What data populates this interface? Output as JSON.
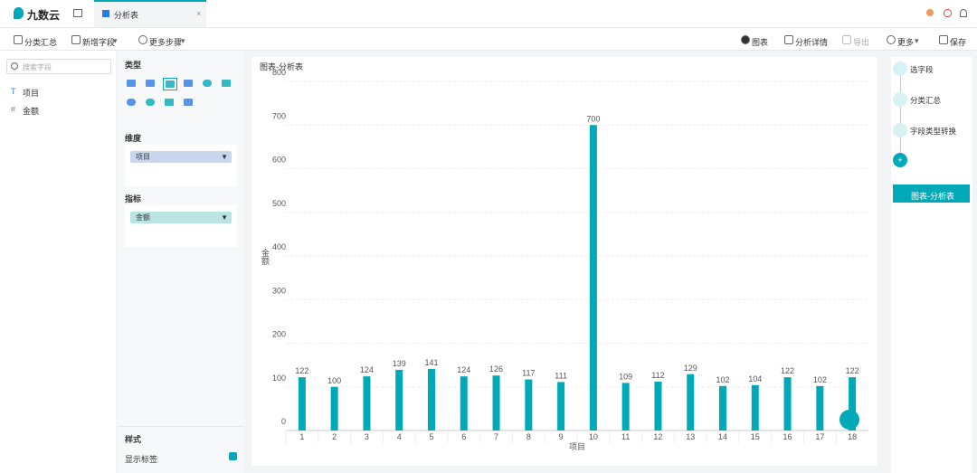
{
  "header": {
    "logo": "九数云",
    "tab": "分析表"
  },
  "toolbar": {
    "left": [
      "分类汇总",
      "新增字段",
      "更多步骤"
    ],
    "right": [
      "图表",
      "分析详情",
      "导出",
      "更多",
      "保存"
    ]
  },
  "fields": {
    "search": "搜索字段",
    "items": [
      "项目",
      "金额"
    ]
  },
  "config": {
    "type_label": "类型",
    "dimension_label": "维度",
    "dimension": "项目",
    "measure_label": "指标",
    "measure": "金额",
    "style_label": "样式",
    "show_labels": "显示标签"
  },
  "steps": [
    "选字段",
    "分类汇总",
    "字段类型转换"
  ],
  "current_step": "图表-分析表",
  "chart_data": {
    "type": "bar",
    "title": "图表-分析表",
    "x_label": "项目",
    "y_label": "金额",
    "categories": [
      "1",
      "2",
      "3",
      "4",
      "5",
      "6",
      "7",
      "8",
      "9",
      "10",
      "11",
      "12",
      "13",
      "14",
      "15",
      "16",
      "17",
      "18"
    ],
    "values": [
      122,
      100,
      124,
      139,
      141,
      124,
      126,
      117,
      111,
      700,
      109,
      112,
      129,
      102,
      104,
      122,
      102,
      122
    ],
    "color": "#00a9b7",
    "ylim": [
      0,
      800
    ],
    "yticks": [
      0,
      100,
      200,
      300,
      400,
      500,
      600,
      700,
      800
    ],
    "grid": true
  }
}
